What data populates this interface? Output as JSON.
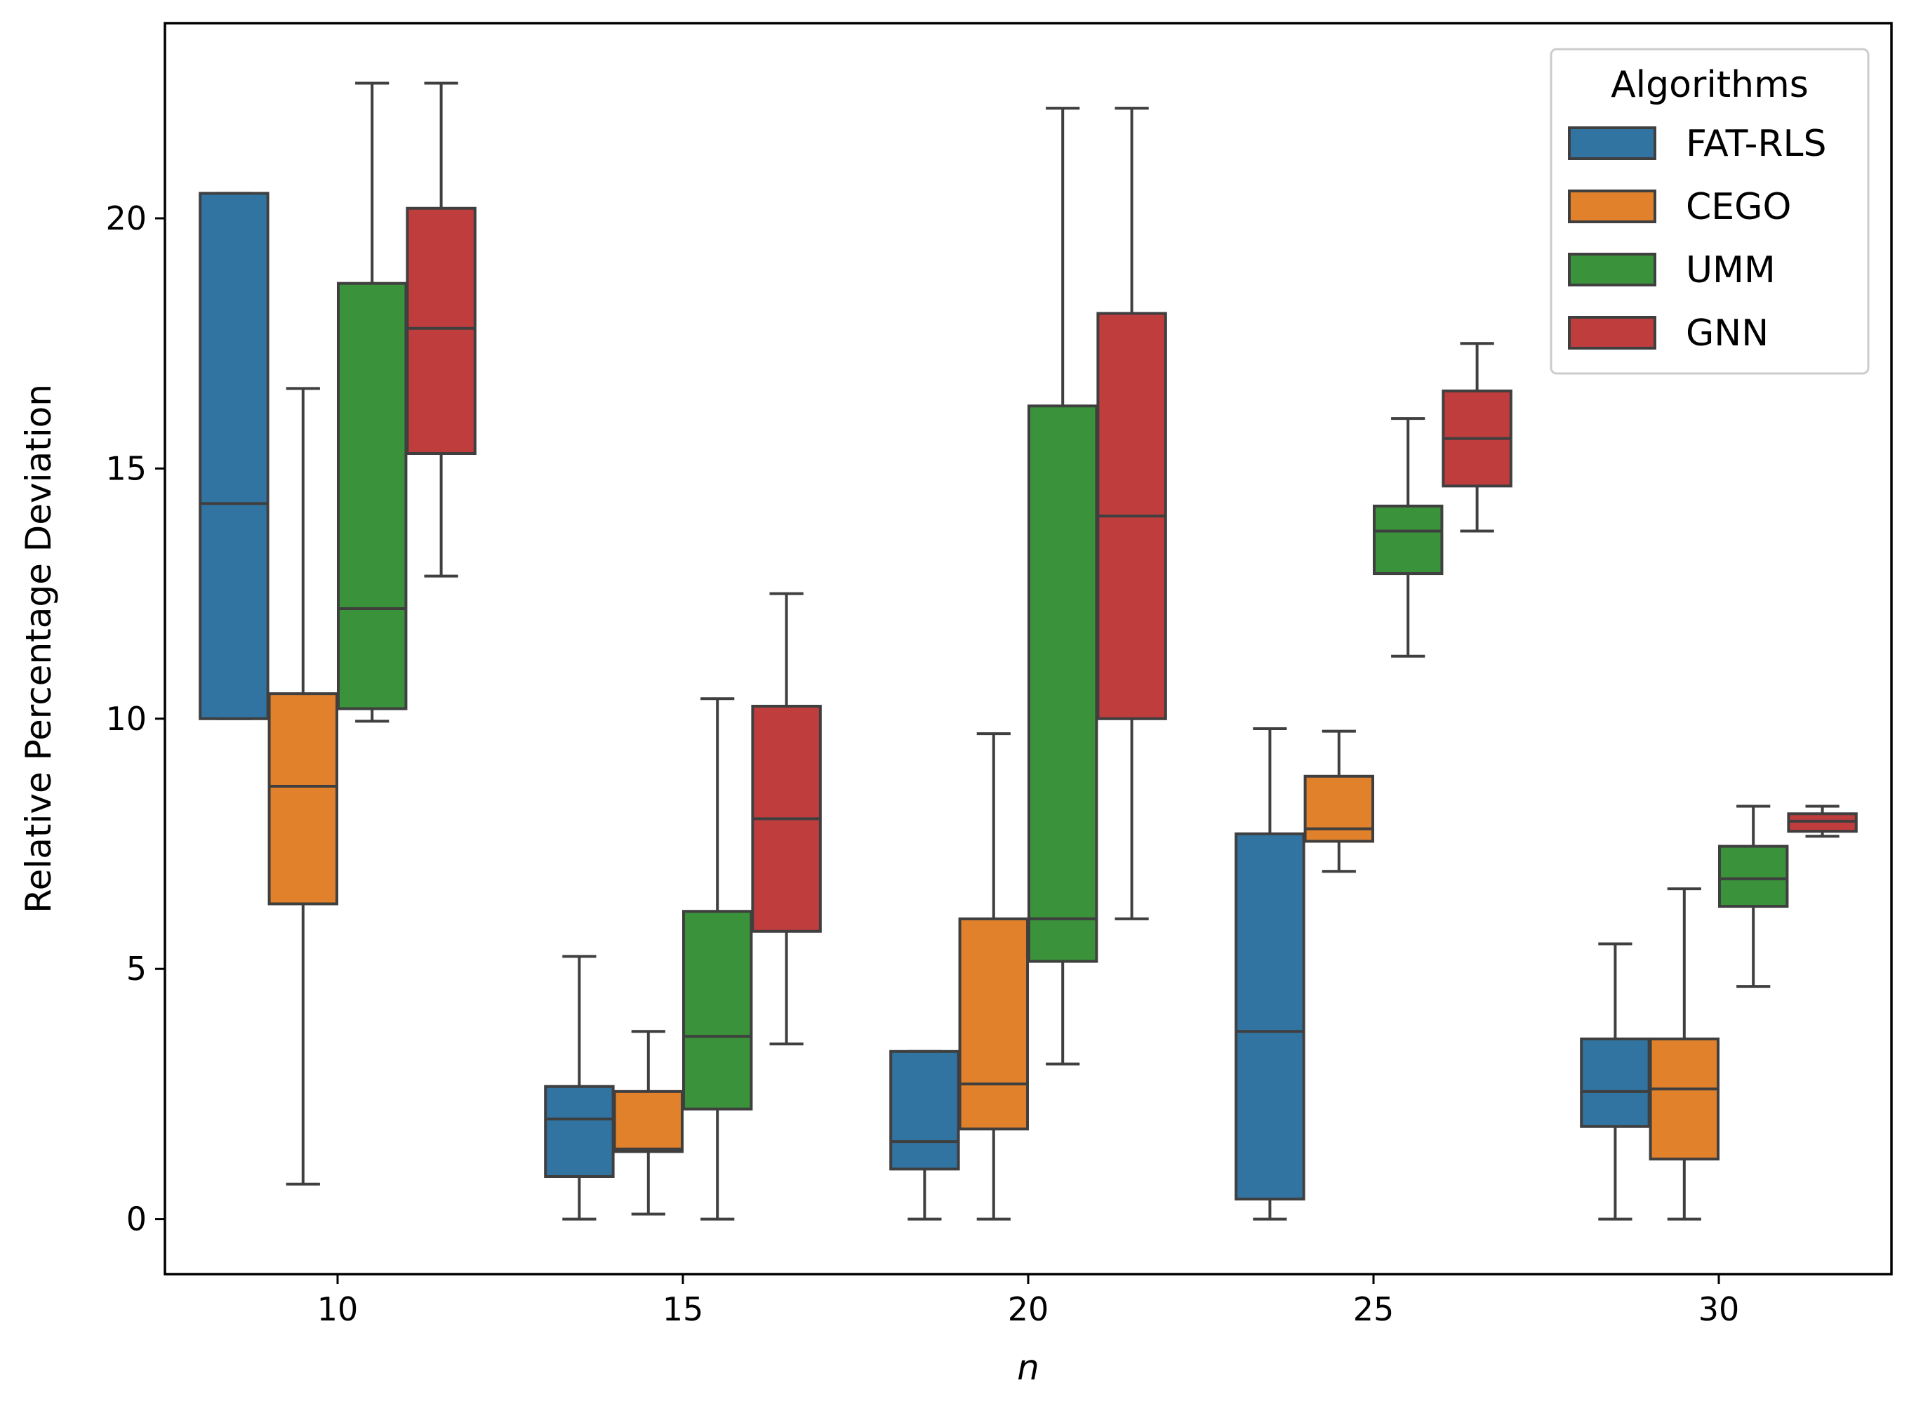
{
  "chart_data": {
    "type": "box",
    "xlabel": "n",
    "ylabel": "Relative Percentage Deviation",
    "ylim": [
      -1.1,
      23.9
    ],
    "yticks": [
      0,
      5,
      10,
      15,
      20
    ],
    "categories": [
      "10",
      "15",
      "20",
      "25",
      "30"
    ],
    "legend": {
      "title": "Algorithms",
      "position": "top-right"
    },
    "colors": {
      "FAT-RLS": "#3274a1",
      "CEGO": "#e1812c",
      "UMM": "#3a923a",
      "GNN": "#c03d3e",
      "outline": "#3f3f3f"
    },
    "series": [
      {
        "name": "FAT-RLS",
        "boxes": [
          {
            "whisker_low": 10.0,
            "q1": 10.0,
            "median": 14.3,
            "q3": 20.5,
            "whisker_high": 20.5
          },
          {
            "whisker_low": 0.0,
            "q1": 0.85,
            "median": 2.0,
            "q3": 2.65,
            "whisker_high": 5.25
          },
          {
            "whisker_low": 0.0,
            "q1": 1.0,
            "median": 1.55,
            "q3": 3.35,
            "whisker_high": 3.35
          },
          {
            "whisker_low": 0.0,
            "q1": 0.4,
            "median": 3.75,
            "q3": 7.7,
            "whisker_high": 9.8
          },
          {
            "whisker_low": 0.0,
            "q1": 1.85,
            "median": 2.55,
            "q3": 3.6,
            "whisker_high": 5.5
          }
        ]
      },
      {
        "name": "CEGO",
        "boxes": [
          {
            "whisker_low": 0.7,
            "q1": 6.3,
            "median": 8.65,
            "q3": 10.5,
            "whisker_high": 16.6
          },
          {
            "whisker_low": 0.1,
            "q1": 1.35,
            "median": 1.4,
            "q3": 2.55,
            "whisker_high": 3.75
          },
          {
            "whisker_low": 0.0,
            "q1": 1.8,
            "median": 2.7,
            "q3": 6.0,
            "whisker_high": 9.7
          },
          {
            "whisker_low": 6.95,
            "q1": 7.55,
            "median": 7.8,
            "q3": 8.85,
            "whisker_high": 9.75
          },
          {
            "whisker_low": 0.0,
            "q1": 1.2,
            "median": 2.6,
            "q3": 3.6,
            "whisker_high": 6.6
          }
        ]
      },
      {
        "name": "UMM",
        "boxes": [
          {
            "whisker_low": 9.95,
            "q1": 10.2,
            "median": 12.2,
            "q3": 18.7,
            "whisker_high": 22.7
          },
          {
            "whisker_low": 0.0,
            "q1": 2.2,
            "median": 3.65,
            "q3": 6.15,
            "whisker_high": 10.4
          },
          {
            "whisker_low": 3.1,
            "q1": 5.15,
            "median": 6.0,
            "q3": 16.25,
            "whisker_high": 22.2
          },
          {
            "whisker_low": 11.25,
            "q1": 12.9,
            "median": 13.75,
            "q3": 14.25,
            "whisker_high": 16.0
          },
          {
            "whisker_low": 4.65,
            "q1": 6.25,
            "median": 6.8,
            "q3": 7.45,
            "whisker_high": 8.25
          }
        ]
      },
      {
        "name": "GNN",
        "boxes": [
          {
            "whisker_low": 12.85,
            "q1": 15.3,
            "median": 17.8,
            "q3": 20.2,
            "whisker_high": 22.7
          },
          {
            "whisker_low": 3.5,
            "q1": 5.75,
            "median": 8.0,
            "q3": 10.25,
            "whisker_high": 12.5
          },
          {
            "whisker_low": 6.0,
            "q1": 10.0,
            "median": 14.05,
            "q3": 18.1,
            "whisker_high": 22.2
          },
          {
            "whisker_low": 13.75,
            "q1": 14.65,
            "median": 15.6,
            "q3": 16.55,
            "whisker_high": 17.5
          },
          {
            "whisker_low": 7.65,
            "q1": 7.75,
            "median": 7.95,
            "q3": 8.1,
            "whisker_high": 8.25
          }
        ]
      }
    ]
  }
}
